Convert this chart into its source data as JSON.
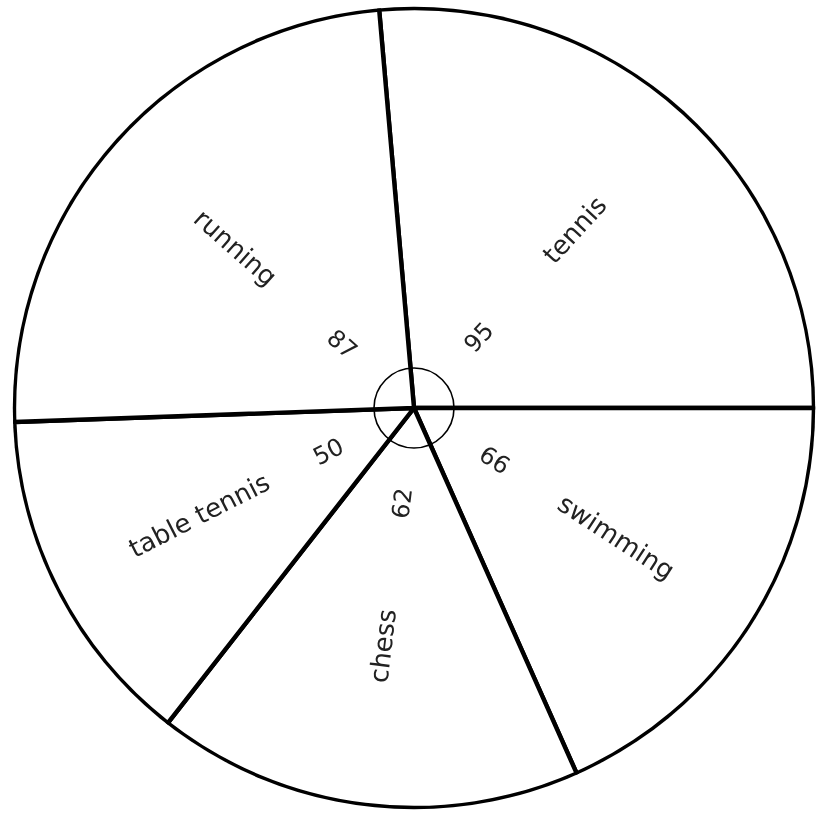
{
  "chart_data": {
    "type": "pie",
    "categories": [
      "tennis",
      "swimming",
      "chess",
      "table tennis",
      "running"
    ],
    "values": [
      95,
      66,
      62,
      50,
      87
    ],
    "colors": [
      "#ffffff",
      "#ffffff",
      "#ffffff",
      "#ffffff",
      "#ffffff"
    ],
    "data_labels": true
  }
}
